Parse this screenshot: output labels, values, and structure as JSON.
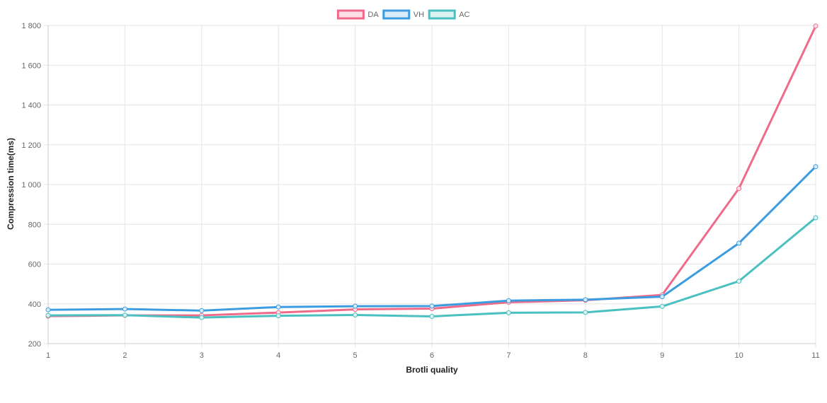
{
  "chart_data": {
    "type": "line",
    "title": "",
    "xlabel": "Brotli quality",
    "ylabel": "Compression time(ms)",
    "x": [
      1,
      2,
      3,
      4,
      5,
      6,
      7,
      8,
      9,
      10,
      11
    ],
    "ylim": [
      200,
      1800
    ],
    "yticks": [
      200,
      400,
      600,
      800,
      1000,
      1200,
      1400,
      1600,
      1800
    ],
    "ytick_labels": [
      "200",
      "400",
      "600",
      "800",
      "1 000",
      "1 200",
      "1 400",
      "1 600",
      "1 800"
    ],
    "xtick_labels": [
      "1",
      "2",
      "3",
      "4",
      "5",
      "6",
      "7",
      "8",
      "9",
      "10",
      "11"
    ],
    "grid": true,
    "legend_position": "top-center",
    "series": [
      {
        "name": "DA",
        "color": "#f06a8a",
        "fill": "#fde1e7",
        "values": [
          338,
          342,
          342,
          356,
          372,
          376,
          408,
          418,
          445,
          980,
          1797
        ]
      },
      {
        "name": "VH",
        "color": "#3b9ce0",
        "fill": "#d8ebf9",
        "values": [
          370,
          374,
          366,
          384,
          388,
          389,
          416,
          421,
          436,
          705,
          1090
        ]
      },
      {
        "name": "AC",
        "color": "#4bc0c0",
        "fill": "#dbf2f2",
        "values": [
          342,
          343,
          331,
          340,
          344,
          337,
          355,
          357,
          387,
          514,
          833
        ]
      }
    ]
  }
}
